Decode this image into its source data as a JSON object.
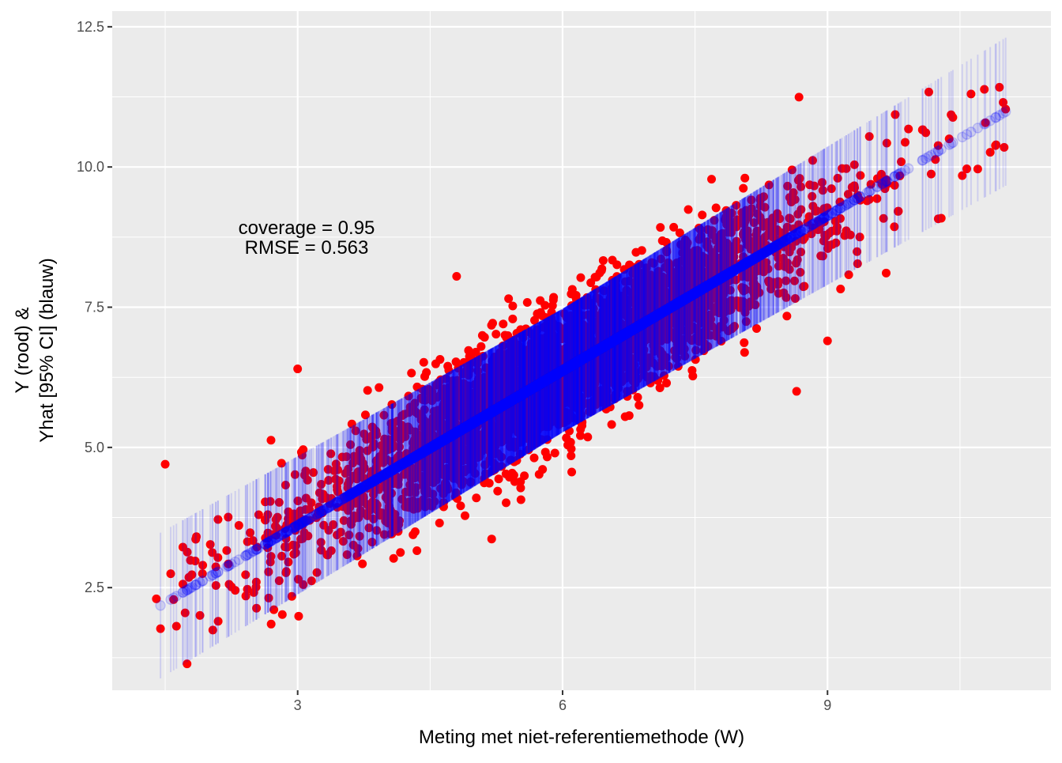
{
  "chart_data": {
    "type": "scatter",
    "xlabel": "Meting met niet-referentiemethode (W)",
    "ylabel_lines": [
      "Y (rood) &",
      "Yhat [95% CI] (blauw)"
    ],
    "xlim": [
      0.9,
      11.53
    ],
    "ylim": [
      0.67,
      12.78
    ],
    "x_ticks": [
      {
        "value": 3,
        "label": "3"
      },
      {
        "value": 6,
        "label": "6"
      },
      {
        "value": 9,
        "label": "9"
      }
    ],
    "y_ticks": [
      {
        "value": 2.5,
        "label": "2.5"
      },
      {
        "value": 5.0,
        "label": "5.0"
      },
      {
        "value": 7.5,
        "label": "7.5"
      },
      {
        "value": 10.0,
        "label": "10.0"
      },
      {
        "value": 12.5,
        "label": "12.5"
      }
    ],
    "grid": true,
    "annotation": {
      "x": 0.1,
      "y": 8.75,
      "lines": [
        "coverage = 0.95",
        "RMSE = 0.563"
      ]
    },
    "series": [
      {
        "role": "observed Y",
        "color": "#ff0000",
        "marker": "filled-circle"
      },
      {
        "role": "predicted Yhat with 95% CI",
        "color": "#0000ff",
        "marker": "open-circle-errorbar",
        "alpha": 0.12
      }
    ],
    "fit": {
      "slope": 0.92,
      "intercept": 0.85,
      "x_range": [
        1.4,
        11.1
      ],
      "residual_sd": 0.563,
      "ci_half_width": 1.1
    },
    "notable_points": [
      {
        "x": 1.4,
        "y": 2.3
      },
      {
        "x": 2.1,
        "y": 1.9
      },
      {
        "x": 2.7,
        "y": 1.85
      },
      {
        "x": 8.65,
        "y": 6.0
      },
      {
        "x": 4.8,
        "y": 8.05
      },
      {
        "x": 11.0,
        "y": 10.35
      },
      {
        "x": 3.0,
        "y": 6.4
      },
      {
        "x": 9.0,
        "y": 6.9
      },
      {
        "x": 1.5,
        "y": 4.7
      }
    ]
  }
}
